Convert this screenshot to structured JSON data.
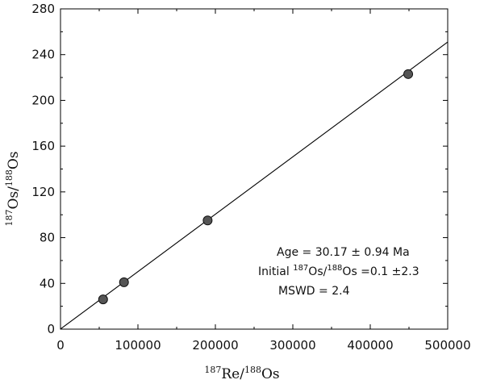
{
  "chart_data": {
    "type": "scatter",
    "x": [
      55000,
      82000,
      190000,
      449000
    ],
    "y": [
      26,
      41,
      95,
      223
    ],
    "xlim": [
      0,
      500000
    ],
    "ylim": [
      0,
      280
    ],
    "xticks": [
      "0",
      "100000",
      "200000",
      "300000",
      "400000",
      "500000"
    ],
    "yticks": [
      "0",
      "40",
      "80",
      "120",
      "160",
      "200",
      "240",
      "280"
    ],
    "xlabel": {
      "sup1": "187",
      "main1": "Re/",
      "sup2": "188",
      "main2": "Os"
    },
    "ylabel": {
      "sup1": "187",
      "main1": "Os/",
      "sup2": "188",
      "main2": "Os"
    },
    "regression_line": {
      "x": [
        0,
        500000
      ],
      "y": [
        0.1,
        251
      ]
    },
    "annotations": {
      "age": "Age = 30.17 ± 0.94 Ma",
      "initial_prefix": "Initial ",
      "initial_sup1": "187",
      "initial_mid": "Os/",
      "initial_sup2": "188",
      "initial_suffix": "Os =0.1 ±2.3",
      "mswd": "MSWD = 2.4"
    },
    "grid": false,
    "marker_color": "#555555",
    "line_color": "#000000"
  }
}
